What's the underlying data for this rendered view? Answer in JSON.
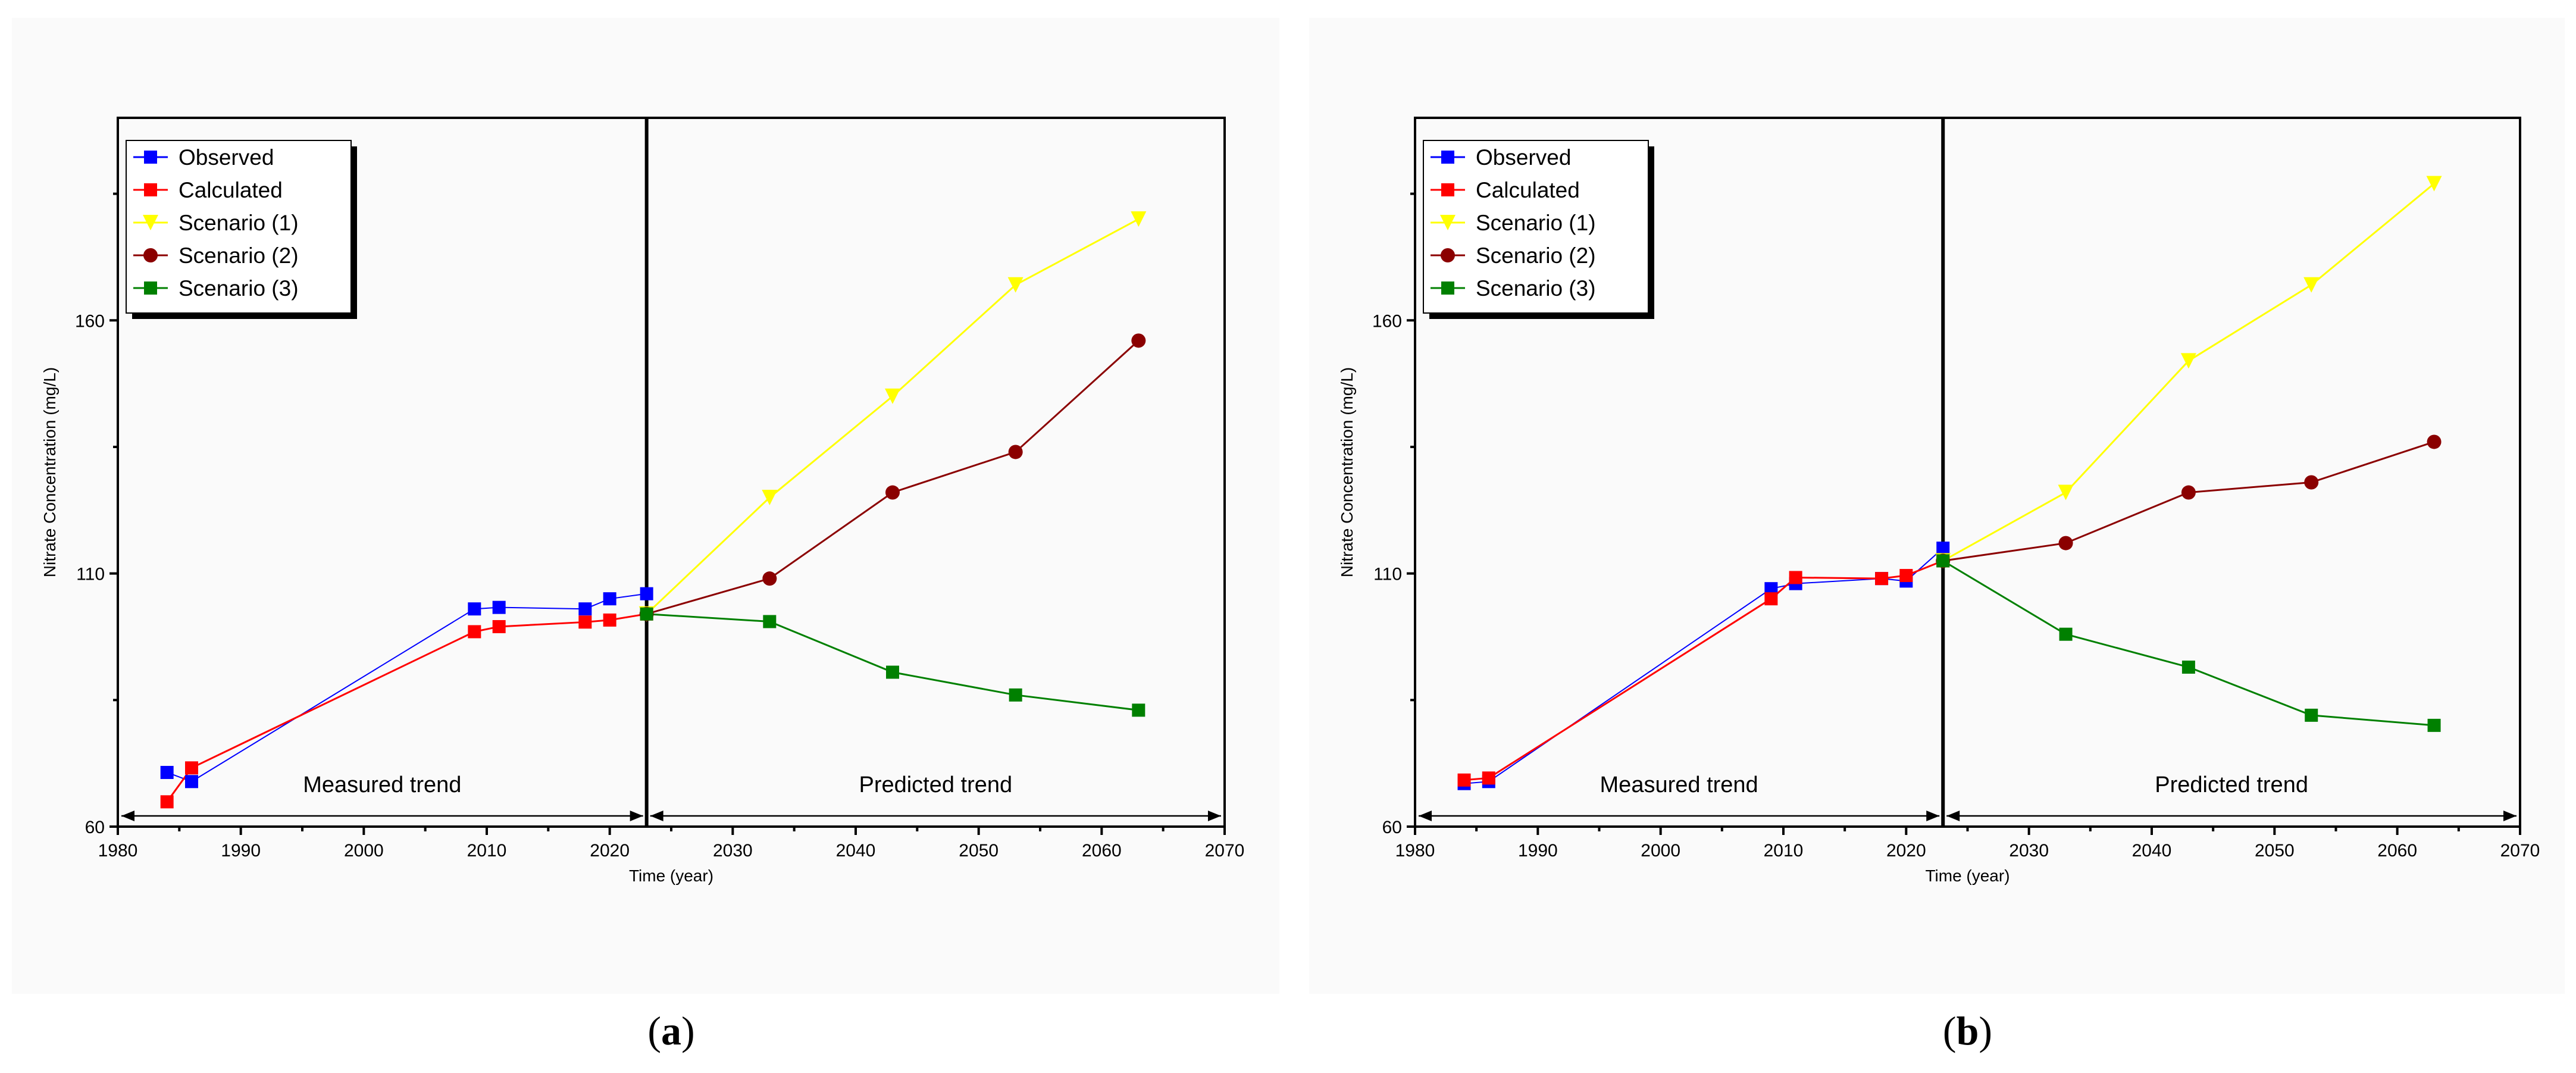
{
  "chart_data": [
    {
      "type": "line",
      "panel_label_prefix": "(",
      "panel_label": "a",
      "panel_label_suffix": ")",
      "xlabel": "Time (year)",
      "ylabel": "Nitrate Concentration (mg/L)",
      "xlim": [
        1980,
        2070
      ],
      "ylim": [
        60,
        200
      ],
      "xticks": [
        1980,
        1990,
        2000,
        2010,
        2020,
        2030,
        2040,
        2050,
        2060,
        2070
      ],
      "yticks": [
        60,
        110,
        160
      ],
      "divider_x": 2023,
      "annotations": {
        "left": "Measured trend",
        "right": "Predicted trend"
      },
      "series": [
        {
          "name": "Observed",
          "color": "#0000ff",
          "marker": "square",
          "x": [
            1984,
            1986,
            2009,
            2011,
            2018,
            2020,
            2023
          ],
          "y": [
            70.7,
            68.9,
            103,
            103.3,
            103,
            105,
            106
          ]
        },
        {
          "name": "Calculated",
          "color": "#ff0000",
          "marker": "square",
          "x": [
            1984,
            1986,
            2009,
            2011,
            2018,
            2020,
            2023
          ],
          "y": [
            64.9,
            71.6,
            98.5,
            99.5,
            100.4,
            100.8,
            102
          ]
        },
        {
          "name": "Scenario (1)",
          "color": "#ffff00",
          "marker": "triangle-down",
          "x": [
            2023,
            2033,
            2043,
            2053,
            2063
          ],
          "y": [
            102,
            125,
            145,
            167,
            180
          ]
        },
        {
          "name": "Scenario (2)",
          "color": "#8b0000",
          "marker": "circle",
          "x": [
            2023,
            2033,
            2043,
            2053,
            2063
          ],
          "y": [
            102,
            109,
            126,
            134,
            156
          ]
        },
        {
          "name": "Scenario (3)",
          "color": "#008000",
          "marker": "square",
          "x": [
            2023,
            2033,
            2043,
            2053,
            2063
          ],
          "y": [
            102,
            100.5,
            90.5,
            86,
            83
          ]
        }
      ]
    },
    {
      "type": "line",
      "panel_label_prefix": "(",
      "panel_label": "b",
      "panel_label_suffix": ")",
      "xlabel": "Time (year)",
      "ylabel": "Nitrate Concentration (mg/L)",
      "xlim": [
        1980,
        2070
      ],
      "ylim": [
        60,
        200
      ],
      "xticks": [
        1980,
        1990,
        2000,
        2010,
        2020,
        2030,
        2040,
        2050,
        2060,
        2070
      ],
      "yticks": [
        60,
        110,
        160
      ],
      "divider_x": 2023,
      "annotations": {
        "left": "Measured trend",
        "right": "Predicted trend"
      },
      "series": [
        {
          "name": "Observed",
          "color": "#0000ff",
          "marker": "square",
          "x": [
            1984,
            1986,
            2009,
            2011,
            2018,
            2020,
            2023
          ],
          "y": [
            68.5,
            68.9,
            107,
            108,
            109,
            108.5,
            115
          ]
        },
        {
          "name": "Calculated",
          "color": "#ff0000",
          "marker": "square",
          "x": [
            1984,
            1986,
            2009,
            2011,
            2018,
            2020,
            2023
          ],
          "y": [
            69.2,
            69.6,
            105,
            109.2,
            109,
            109.6,
            112.5
          ]
        },
        {
          "name": "Scenario (1)",
          "color": "#ffff00",
          "marker": "triangle-down",
          "x": [
            2023,
            2033,
            2043,
            2053,
            2063
          ],
          "y": [
            112.5,
            126,
            152,
            167,
            187
          ]
        },
        {
          "name": "Scenario (2)",
          "color": "#8b0000",
          "marker": "circle",
          "x": [
            2023,
            2033,
            2043,
            2053,
            2063
          ],
          "y": [
            112.5,
            116,
            126,
            128,
            136
          ]
        },
        {
          "name": "Scenario (3)",
          "color": "#008000",
          "marker": "square",
          "x": [
            2023,
            2033,
            2043,
            2053,
            2063
          ],
          "y": [
            112.5,
            98,
            91.5,
            82,
            80
          ]
        }
      ]
    }
  ]
}
